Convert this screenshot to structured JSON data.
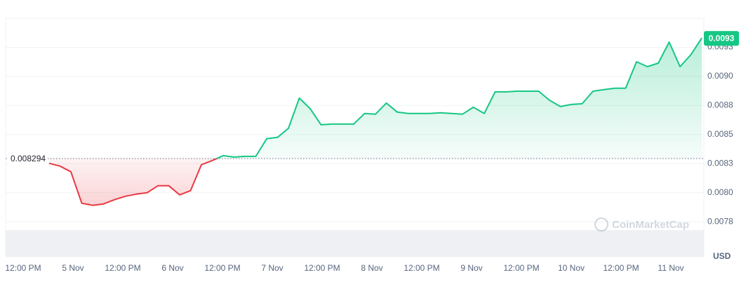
{
  "chart_data": {
    "type": "line",
    "up_color": "#16c784",
    "down_color": "#ea3943",
    "baseline": {
      "value": 0.008294,
      "label": "0.008294"
    },
    "current_price_label": "0.0093",
    "currency": "USD",
    "watermark": "CoinMarketCap",
    "ylim": [
      0.00745,
      0.0095
    ],
    "yticks": [
      {
        "value": 0.00775,
        "label": "0.0078"
      },
      {
        "value": 0.008,
        "label": "0.0080"
      },
      {
        "value": 0.00825,
        "label": "0.0083"
      },
      {
        "value": 0.0085,
        "label": "0.0085"
      },
      {
        "value": 0.00875,
        "label": "0.0088"
      },
      {
        "value": 0.009,
        "label": "0.0090"
      },
      {
        "value": 0.00925,
        "label": "0.0093"
      }
    ],
    "grid": true,
    "x_labels": [
      "12:00 PM",
      "5 Nov",
      "12:00 PM",
      "6 Nov",
      "12:00 PM",
      "7 Nov",
      "12:00 PM",
      "8 Nov",
      "12:00 PM",
      "9 Nov",
      "12:00 PM",
      "10 Nov",
      "12:00 PM",
      "11 Nov"
    ],
    "values": [
      0.008253,
      0.008229,
      0.008181,
      0.00791,
      0.007892,
      0.007904,
      0.00794,
      0.00797,
      0.007988,
      0.008,
      0.00806,
      0.00806,
      0.007982,
      0.008018,
      0.008241,
      0.008277,
      0.008319,
      0.008307,
      0.008313,
      0.008313,
      0.008464,
      0.008476,
      0.008554,
      0.008813,
      0.008723,
      0.008584,
      0.00859,
      0.00859,
      0.00859,
      0.008681,
      0.008675,
      0.008771,
      0.008693,
      0.008681,
      0.008681,
      0.008681,
      0.008687,
      0.008681,
      0.008675,
      0.008735,
      0.008681,
      0.008867,
      0.008867,
      0.008873,
      0.008873,
      0.008873,
      0.008795,
      0.008741,
      0.008759,
      0.008765,
      0.008873,
      0.008886,
      0.008898,
      0.008898,
      0.009126,
      0.009084,
      0.009114,
      0.009295,
      0.009084,
      0.009187,
      0.00933
    ]
  }
}
